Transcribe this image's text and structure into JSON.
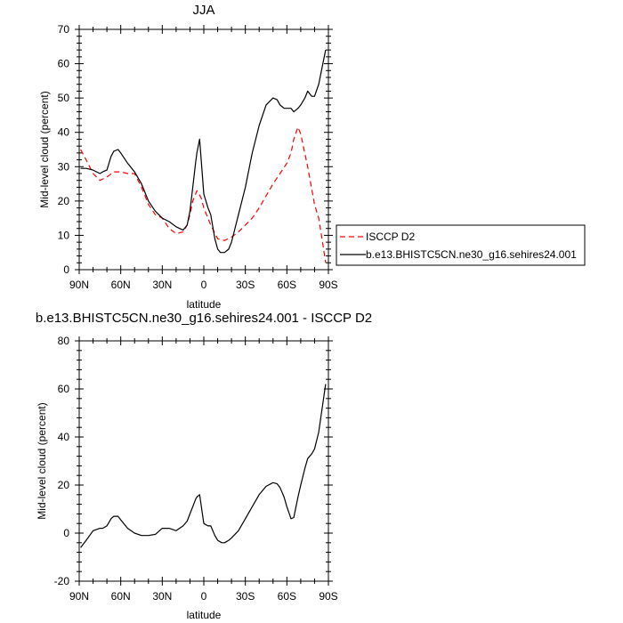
{
  "chart_data": [
    {
      "type": "line",
      "title": "JJA",
      "xlabel": "latitude",
      "ylabel": "Mid-level cloud (percent)",
      "xlim": [
        90,
        -90
      ],
      "ylim": [
        0,
        70
      ],
      "xticks": [
        90,
        60,
        30,
        0,
        -30,
        -60,
        -90
      ],
      "xtick_labels": [
        "90N",
        "60N",
        "30N",
        "0",
        "30S",
        "60S",
        "90S"
      ],
      "yticks": [
        0,
        10,
        20,
        30,
        40,
        50,
        60,
        70
      ],
      "ytick_labels": [
        "0",
        "10",
        "20",
        "30",
        "40",
        "50",
        "60",
        "70"
      ],
      "legend_position": "right",
      "series": [
        {
          "name": "ISCCP D2",
          "color": "#ff0000",
          "dash": "dashed",
          "x": [
            89,
            85,
            80,
            75,
            70,
            65,
            60,
            55,
            50,
            45,
            40,
            35,
            30,
            25,
            20,
            15,
            12,
            10,
            8,
            5,
            2,
            0,
            -5,
            -10,
            -15,
            -20,
            -25,
            -30,
            -35,
            -40,
            -45,
            -50,
            -55,
            -60,
            -63,
            -65,
            -68,
            -70,
            -75,
            -80,
            -83,
            -85,
            -88
          ],
          "values": [
            35,
            32,
            28,
            26,
            27,
            28.5,
            28.5,
            28,
            28,
            24,
            19,
            16,
            15,
            12,
            10.5,
            11,
            13,
            16,
            20,
            23,
            21,
            18,
            13,
            9,
            8.5,
            9.5,
            11,
            13,
            15,
            18,
            21.5,
            25,
            28,
            31,
            34,
            38,
            41.5,
            39.5,
            30,
            19,
            15,
            10,
            2
          ]
        },
        {
          "name": "b.e13.BHISTC5CN.ne30_g16.sehires24.001",
          "color": "#000000",
          "dash": "solid",
          "x": [
            89,
            85,
            80,
            75,
            73,
            70,
            67,
            65,
            62,
            60,
            55,
            50,
            45,
            40,
            35,
            30,
            25,
            20,
            15,
            12,
            10,
            8,
            6,
            5,
            3,
            0,
            -3,
            -5,
            -8,
            -10,
            -12,
            -15,
            -18,
            -20,
            -25,
            -30,
            -35,
            -40,
            -45,
            -50,
            -53,
            -55,
            -58,
            -60,
            -63,
            -65,
            -68,
            -70,
            -73,
            -75,
            -78,
            -80,
            -83,
            -85,
            -88
          ],
          "values": [
            29.5,
            29.5,
            29,
            28,
            28.5,
            29,
            33,
            34.5,
            35,
            34,
            31,
            28.5,
            25,
            20,
            17,
            15,
            14,
            12.5,
            11.5,
            13,
            17,
            24,
            31,
            34,
            38,
            22,
            18,
            16,
            9,
            6,
            5,
            5,
            6,
            8,
            16,
            24,
            34,
            42,
            48,
            50,
            49.5,
            48,
            47,
            47,
            47,
            46,
            47,
            48,
            50,
            52,
            50.5,
            50.5,
            54,
            58,
            64
          ]
        }
      ]
    },
    {
      "type": "line",
      "title": "b.e13.BHISTC5CN.ne30_g16.sehires24.001 - ISCCP D2",
      "xlabel": "latitude",
      "ylabel": "Mid-level cloud (percent)",
      "xlim": [
        90,
        -90
      ],
      "ylim": [
        -20,
        80
      ],
      "xticks": [
        90,
        60,
        30,
        0,
        -30,
        -60,
        -90
      ],
      "xtick_labels": [
        "90N",
        "60N",
        "30N",
        "0",
        "30S",
        "60S",
        "90S"
      ],
      "yticks": [
        -20,
        0,
        20,
        40,
        60,
        80
      ],
      "ytick_labels": [
        "-20",
        "0",
        "20",
        "40",
        "60",
        "80"
      ],
      "series": [
        {
          "color": "#000000",
          "dash": "solid",
          "x": [
            89,
            85,
            80,
            75,
            73,
            70,
            67,
            65,
            62,
            60,
            55,
            50,
            45,
            40,
            35,
            30,
            25,
            20,
            15,
            12,
            10,
            8,
            6,
            5,
            3,
            0,
            -3,
            -5,
            -8,
            -10,
            -13,
            -15,
            -18,
            -20,
            -25,
            -30,
            -35,
            -40,
            -45,
            -50,
            -53,
            -55,
            -58,
            -60,
            -63,
            -65,
            -68,
            -70,
            -73,
            -75,
            -78,
            -80,
            -83,
            -85,
            -88
          ],
          "values": [
            -6,
            -3,
            1,
            2,
            2,
            3,
            6,
            7,
            7,
            5.5,
            2,
            0,
            -1,
            -1,
            -0.5,
            2,
            2,
            1,
            3,
            5,
            8,
            11,
            14,
            15,
            16,
            4,
            3,
            3,
            -1,
            -3,
            -4,
            -4,
            -3,
            -2,
            1,
            6,
            11,
            16,
            19.5,
            21,
            20.5,
            19,
            15,
            11,
            6,
            6.5,
            15,
            20,
            27,
            31,
            33,
            35,
            42,
            50,
            62
          ]
        }
      ]
    }
  ]
}
